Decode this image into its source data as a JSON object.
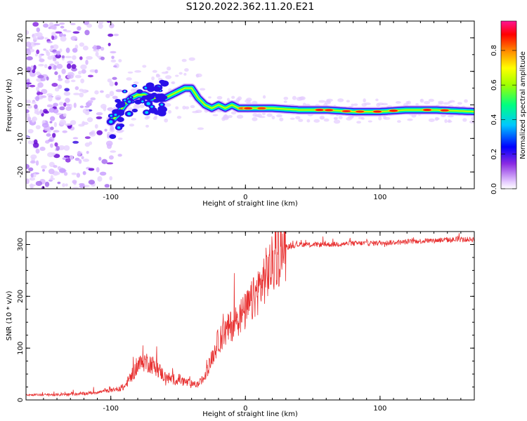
{
  "title": "S120.2022.362.11.20.E21",
  "colors": {
    "snr_line": "#e83030",
    "frame": "#000000"
  },
  "chart_data": [
    {
      "type": "heatmap",
      "xlabel": "Height of straight line (km)",
      "ylabel": "Frequency (Hz)",
      "xlim": [
        -163,
        170
      ],
      "ylim": [
        -25,
        25
      ],
      "x_ticks": [
        -100,
        0,
        100
      ],
      "y_ticks": [
        -20,
        -10,
        0,
        10,
        20
      ],
      "colorbar": {
        "label": "Normalized spectral amplitude",
        "ticks": [
          "0.0",
          "0.2",
          "0.4",
          "0.6",
          "0.8"
        ],
        "range": [
          0,
          0.97
        ],
        "colormap": "rainbow (violet-blue-cyan-green-yellow-orange-red-magenta)"
      },
      "ridge": {
        "description": "Frequency ridge of the signal vs straight-line height",
        "x": [
          -100,
          -95,
          -90,
          -85,
          -80,
          -75,
          -70,
          -65,
          -60,
          -55,
          -50,
          -45,
          -40,
          -35,
          -30,
          -25,
          -20,
          -15,
          -10,
          -5,
          0,
          10,
          20,
          40,
          60,
          80,
          100,
          120,
          140,
          170
        ],
        "y": [
          -5,
          -3,
          0,
          2,
          3,
          3,
          2,
          2,
          2,
          3,
          4,
          5,
          5,
          2,
          0,
          -1,
          0,
          -1,
          0,
          -1,
          -1,
          -1,
          -1,
          -1.5,
          -1.5,
          -2,
          -2,
          -1.5,
          -1.5,
          -2
        ]
      }
    },
    {
      "type": "line",
      "xlabel": "Height of straight line (km)",
      "ylabel": "SNR (10 * v/v)",
      "xlim": [
        -163,
        170
      ],
      "ylim": [
        0,
        325
      ],
      "x_ticks": [
        -100,
        0,
        100
      ],
      "y_ticks": [
        0,
        100,
        200,
        300
      ],
      "trend": {
        "x": [
          -163,
          -140,
          -120,
          -100,
          -90,
          -85,
          -80,
          -75,
          -70,
          -65,
          -60,
          -55,
          -50,
          -45,
          -40,
          -35,
          -30,
          -25,
          -20,
          -15,
          -10,
          -5,
          0,
          5,
          10,
          15,
          20,
          25,
          30,
          40,
          60,
          80,
          100,
          120,
          140,
          170
        ],
        "y": [
          10,
          10,
          12,
          18,
          25,
          45,
          65,
          75,
          70,
          60,
          45,
          40,
          40,
          35,
          30,
          30,
          45,
          80,
          115,
          130,
          145,
          160,
          170,
          190,
          215,
          240,
          260,
          280,
          295,
          300,
          300,
          302,
          303,
          305,
          308,
          310
        ]
      }
    }
  ]
}
